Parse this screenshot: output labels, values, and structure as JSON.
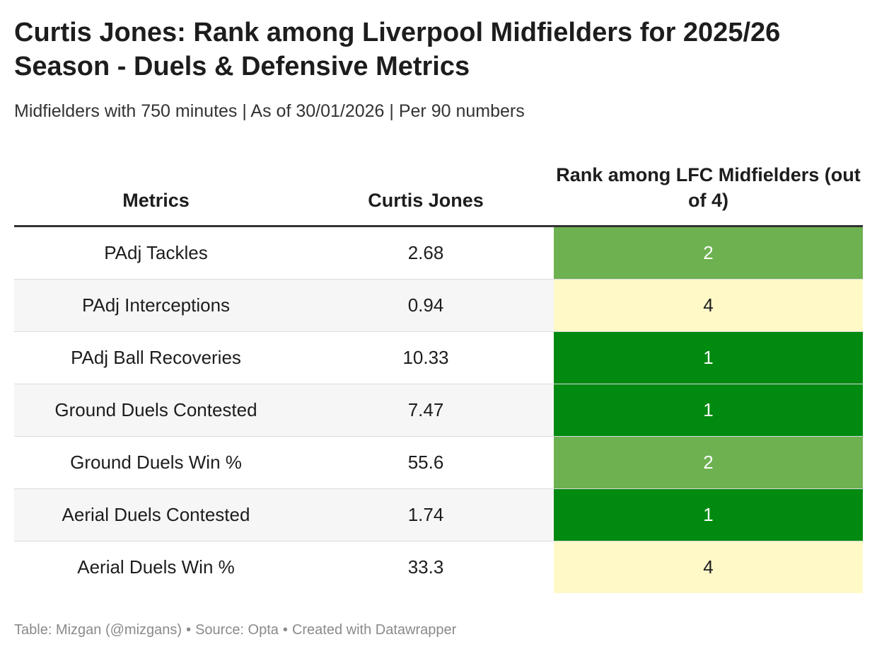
{
  "title": "Curtis Jones: Rank among Liverpool Midfielders for 2025/26 Season - Duels & Defensive Metrics",
  "subtitle": "Midfielders with 750 minutes | As of 30/01/2026 | Per 90 numbers",
  "footer": {
    "credit": "Table: Mizgan (@mizgans)",
    "source": "Source: Opta",
    "tool": "Created with Datawrapper",
    "separator": "•"
  },
  "colors": {
    "rank_1": "#008a10",
    "rank_2": "#6db151",
    "rank_4": "#fff9c8",
    "text_light": "#ffffff",
    "text_dark": "#1d1d1d"
  },
  "chart_data": {
    "type": "table",
    "columns": [
      "Metrics",
      "Curtis Jones",
      "Rank among LFC Midfielders (out of 4)"
    ],
    "rows": [
      {
        "metric": "PAdj Tackles",
        "value": "2.68",
        "rank": "2"
      },
      {
        "metric": "PAdj Interceptions",
        "value": "0.94",
        "rank": "4"
      },
      {
        "metric": "PAdj Ball Recoveries",
        "value": "10.33",
        "rank": "1"
      },
      {
        "metric": "Ground Duels Contested",
        "value": "7.47",
        "rank": "1"
      },
      {
        "metric": "Ground Duels Win %",
        "value": "55.6",
        "rank": "2"
      },
      {
        "metric": "Aerial Duels Contested",
        "value": "1.74",
        "rank": "1"
      },
      {
        "metric": "Aerial Duels Win %",
        "value": "33.3",
        "rank": "4"
      }
    ]
  }
}
